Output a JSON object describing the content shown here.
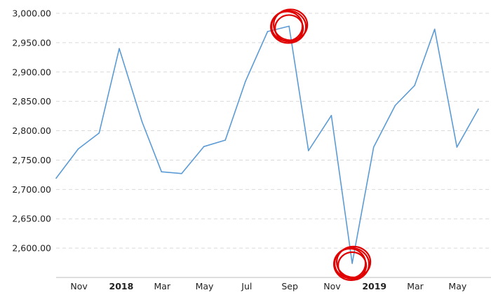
{
  "chart_data": {
    "type": "line",
    "title": "",
    "xlabel": "",
    "ylabel": "",
    "ylim": [
      2550,
      3000
    ],
    "grid": true,
    "y_ticks": [
      "3,000.00",
      "2,950.00",
      "2,900.00",
      "2,850.00",
      "2,800.00",
      "2,750.00",
      "2,700.00",
      "2,650.00",
      "2,600.00"
    ],
    "y_tick_values": [
      3000,
      2950,
      2900,
      2850,
      2800,
      2750,
      2700,
      2650,
      2600
    ],
    "x_ticks": [
      {
        "label": "Nov",
        "date": "2017-11",
        "bold": false
      },
      {
        "label": "2018",
        "date": "2018-01",
        "bold": true
      },
      {
        "label": "Mar",
        "date": "2018-03",
        "bold": false
      },
      {
        "label": "May",
        "date": "2018-05",
        "bold": false
      },
      {
        "label": "Jul",
        "date": "2018-07",
        "bold": false
      },
      {
        "label": "Sep",
        "date": "2018-09",
        "bold": false
      },
      {
        "label": "Nov",
        "date": "2018-11",
        "bold": false
      },
      {
        "label": "2019",
        "date": "2019-01",
        "bold": true
      },
      {
        "label": "Mar",
        "date": "2019-03",
        "bold": false
      },
      {
        "label": "May",
        "date": "2019-05",
        "bold": false
      }
    ],
    "series": [
      {
        "color": "#5b9bd5",
        "points": [
          {
            "x": "2017-09-29",
            "y": 2719
          },
          {
            "x": "2017-10-31",
            "y": 2769
          },
          {
            "x": "2017-11-30",
            "y": 2796
          },
          {
            "x": "2017-12-29",
            "y": 2940
          },
          {
            "x": "2018-01-31",
            "y": 2815
          },
          {
            "x": "2018-02-28",
            "y": 2730
          },
          {
            "x": "2018-03-29",
            "y": 2727
          },
          {
            "x": "2018-04-30",
            "y": 2773
          },
          {
            "x": "2018-05-31",
            "y": 2784
          },
          {
            "x": "2018-06-29",
            "y": 2884
          },
          {
            "x": "2018-07-31",
            "y": 2969
          },
          {
            "x": "2018-08-31",
            "y": 2978
          },
          {
            "x": "2018-09-28",
            "y": 2766
          },
          {
            "x": "2018-10-31",
            "y": 2826
          },
          {
            "x": "2018-11-30",
            "y": 2574
          },
          {
            "x": "2018-12-31",
            "y": 2772
          },
          {
            "x": "2019-01-31",
            "y": 2843
          },
          {
            "x": "2019-02-28",
            "y": 2877
          },
          {
            "x": "2019-03-29",
            "y": 2973
          },
          {
            "x": "2019-04-30",
            "y": 2772
          },
          {
            "x": "2019-05-31",
            "y": 2837
          }
        ]
      }
    ],
    "annotations": [
      {
        "type": "circle",
        "color": "#e00000",
        "at": {
          "x": "2018-08-31",
          "y": 2978
        }
      },
      {
        "type": "circle",
        "color": "#e00000",
        "at": {
          "x": "2018-11-30",
          "y": 2574
        }
      }
    ]
  }
}
